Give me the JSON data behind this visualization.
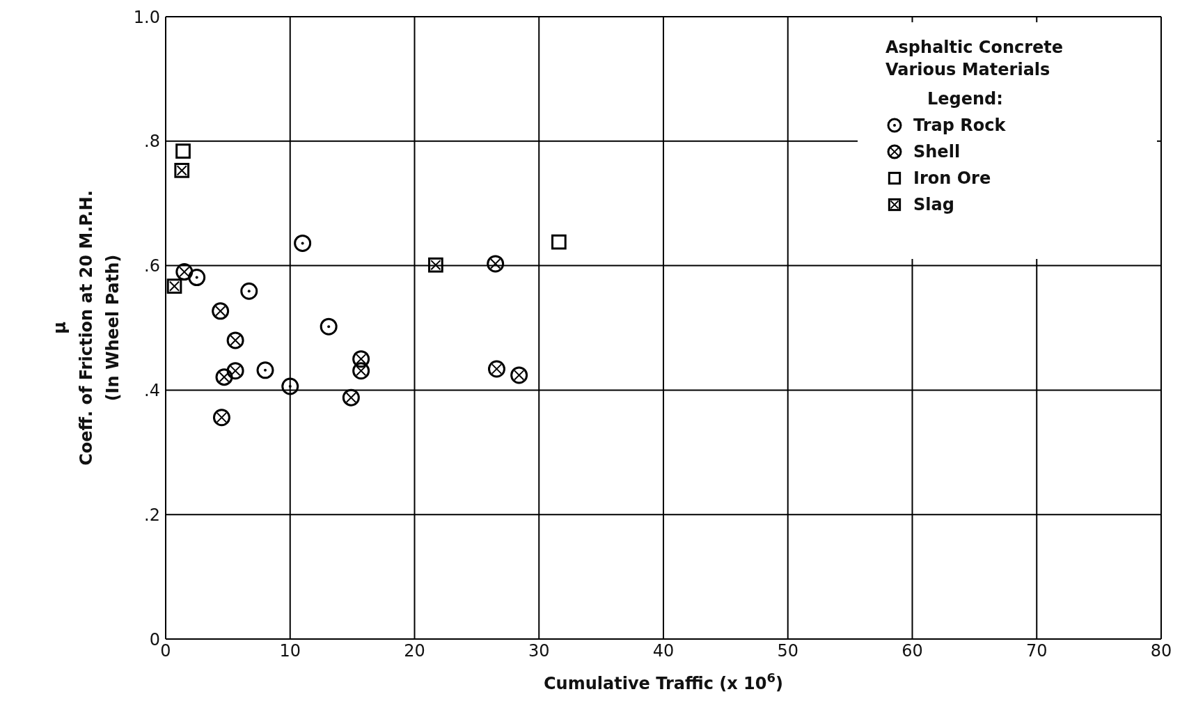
{
  "chart_data": {
    "type": "scatter",
    "title": "Asphaltic Concrete\nVarious Materials",
    "legend_title": "Legend:",
    "xlabel": "Cumulative Traffic (x 10$^{6}$)",
    "ylabel": "μ\nCoeff. of Friction at 20 M.P.H.\n(In Wheel Path)",
    "xlim": [
      0,
      80
    ],
    "xticks": [
      0,
      10,
      20,
      30,
      40,
      50,
      60,
      70,
      80
    ],
    "ylim": [
      0,
      1.0
    ],
    "yticks": [
      0,
      {
        "value": 0.2,
        "label": ".2"
      },
      {
        "value": 0.4,
        "label": ".4"
      },
      {
        "value": 0.6,
        "label": ".6"
      },
      {
        "value": 0.8,
        "label": ".8"
      },
      {
        "value": 1.0,
        "label": "1.0"
      }
    ],
    "grid": true,
    "legend": "top right",
    "series": [
      {
        "name": "Trap Rock",
        "color": "#000000",
        "marker": "circle",
        "x": [
          11.0,
          2.5,
          6.7,
          8.0,
          10.0,
          13.1
        ],
        "values": [
          0.636,
          0.581,
          0.559,
          0.432,
          0.406,
          0.502
        ]
      },
      {
        "name": "Shell",
        "color": "#000000",
        "marker": "circle",
        "x": [
          1.5,
          4.4,
          5.6,
          5.6,
          4.7,
          4.5,
          14.9,
          15.7,
          15.7,
          26.5,
          26.6,
          28.4
        ],
        "values": [
          0.59,
          0.527,
          0.48,
          0.431,
          0.421,
          0.356,
          0.388,
          0.45,
          0.431,
          0.603,
          0.434,
          0.424
        ]
      },
      {
        "name": "Iron Ore",
        "color": "#000000",
        "marker": "square",
        "x": [
          1.4,
          31.6
        ],
        "values": [
          0.784,
          0.638
        ]
      },
      {
        "name": "Slag",
        "color": "#000000",
        "marker": "square",
        "x": [
          1.3,
          0.7,
          21.7
        ],
        "values": [
          0.753,
          0.567,
          0.601
        ]
      }
    ]
  }
}
